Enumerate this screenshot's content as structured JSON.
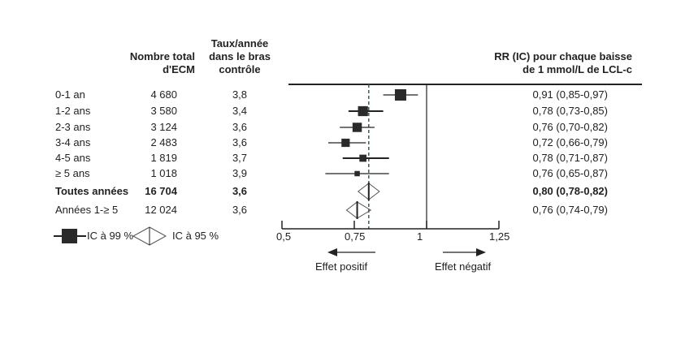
{
  "chart_data": {
    "type": "forest",
    "headers": {
      "n": [
        "Nombre total",
        "d'ECM"
      ],
      "rate": [
        "Taux/année",
        "dans le bras",
        "contrôle"
      ],
      "rr": [
        "RR (IC) pour chaque baisse",
        "de 1 mmol/L de LCL-c"
      ]
    },
    "rows": [
      {
        "label": "0-1 an",
        "n": "4 680",
        "rate": "3,8",
        "rr_text": "0,91 (0,85-0,97)",
        "rr": 0.91,
        "lo": 0.85,
        "hi": 0.97,
        "kind": "square",
        "weight": 4680,
        "bold": false
      },
      {
        "label": "1-2 ans",
        "n": "3 580",
        "rate": "3,4",
        "rr_text": "0,78 (0,73-0,85)",
        "rr": 0.78,
        "lo": 0.73,
        "hi": 0.85,
        "kind": "square",
        "weight": 3580,
        "bold": false
      },
      {
        "label": "2-3 ans",
        "n": "3 124",
        "rate": "3,6",
        "rr_text": "0,76 (0,70-0,82)",
        "rr": 0.76,
        "lo": 0.7,
        "hi": 0.82,
        "kind": "square",
        "weight": 3124,
        "bold": false
      },
      {
        "label": "3-4 ans",
        "n": "2 483",
        "rate": "3,6",
        "rr_text": "0,72 (0,66-0,79)",
        "rr": 0.72,
        "lo": 0.66,
        "hi": 0.79,
        "kind": "square",
        "weight": 2483,
        "bold": false
      },
      {
        "label": "4-5 ans",
        "n": "1 819",
        "rate": "3,7",
        "rr_text": "0,78 (0,71-0,87)",
        "rr": 0.78,
        "lo": 0.71,
        "hi": 0.87,
        "kind": "square",
        "weight": 1819,
        "bold": false
      },
      {
        "label": "≥ 5 ans",
        "n": "1 018",
        "rate": "3,9",
        "rr_text": "0,76 (0,65-0,87)",
        "rr": 0.76,
        "lo": 0.65,
        "hi": 0.87,
        "kind": "square",
        "weight": 1018,
        "bold": false
      },
      {
        "label": "Toutes années",
        "n": "16 704",
        "rate": "3,6",
        "rr_text": "0,80 (0,78-0,82)",
        "rr": 0.8,
        "lo": 0.78,
        "hi": 0.82,
        "kind": "diamond",
        "bold": true
      },
      {
        "label": "Années 1-≥ 5",
        "n": "12 024",
        "rate": "3,6",
        "rr_text": "0,76 (0,74-0,79)",
        "rr": 0.76,
        "lo": 0.74,
        "hi": 0.79,
        "kind": "diamond",
        "bold": false
      }
    ],
    "xlim": [
      0.5,
      1.25
    ],
    "xticks": [
      {
        "v": 0.5,
        "label": "0,5"
      },
      {
        "v": 0.75,
        "label": "0,75"
      },
      {
        "v": 1,
        "label": "1"
      },
      {
        "v": 1.25,
        "label": "1,25"
      }
    ],
    "reference_line": 1,
    "overall_dashed_line": 0.8,
    "legend": {
      "square": "IC à 99 %",
      "diamond": "IC à 95 %"
    },
    "annotations": {
      "left": "Effet positif",
      "right": "Effet négatif"
    }
  }
}
